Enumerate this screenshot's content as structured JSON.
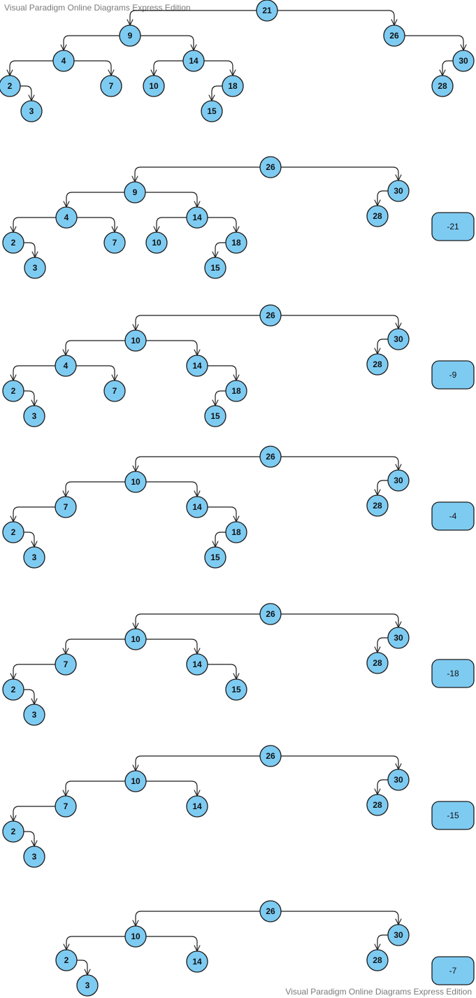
{
  "watermark": {
    "top": "Visual Paradigm Online Diagrams Express Edition",
    "bottom": "Visual Paradigm Online Diagrams Express Edition"
  },
  "colors": {
    "node_fill": "#7ecbf2",
    "node_stroke": "#1a1a1a",
    "edge": "#1a1a1a",
    "label_fill": "#7ecbf2"
  },
  "trees": [
    {
      "nodes": [
        {
          "id": "21",
          "label": "21"
        },
        {
          "id": "9",
          "label": "9"
        },
        {
          "id": "26",
          "label": "26"
        },
        {
          "id": "4",
          "label": "4"
        },
        {
          "id": "14",
          "label": "14"
        },
        {
          "id": "30",
          "label": "30"
        },
        {
          "id": "2",
          "label": "2"
        },
        {
          "id": "7",
          "label": "7"
        },
        {
          "id": "10",
          "label": "10"
        },
        {
          "id": "18",
          "label": "18"
        },
        {
          "id": "28",
          "label": "28"
        },
        {
          "id": "3",
          "label": "3"
        },
        {
          "id": "15",
          "label": "15"
        }
      ],
      "edges": [
        [
          "21",
          "9"
        ],
        [
          "21",
          "26"
        ],
        [
          "9",
          "4"
        ],
        [
          "9",
          "14"
        ],
        [
          "26",
          "30"
        ],
        [
          "4",
          "2"
        ],
        [
          "4",
          "7"
        ],
        [
          "14",
          "10"
        ],
        [
          "14",
          "18"
        ],
        [
          "30",
          "28"
        ],
        [
          "2",
          "3"
        ],
        [
          "18",
          "15"
        ]
      ],
      "operation": null
    },
    {
      "nodes": [
        {
          "id": "26",
          "label": "26"
        },
        {
          "id": "9",
          "label": "9"
        },
        {
          "id": "30",
          "label": "30"
        },
        {
          "id": "28",
          "label": "28"
        },
        {
          "id": "4",
          "label": "4"
        },
        {
          "id": "14",
          "label": "14"
        },
        {
          "id": "2",
          "label": "2"
        },
        {
          "id": "7",
          "label": "7"
        },
        {
          "id": "10",
          "label": "10"
        },
        {
          "id": "18",
          "label": "18"
        },
        {
          "id": "3",
          "label": "3"
        },
        {
          "id": "15",
          "label": "15"
        }
      ],
      "edges": [
        [
          "26",
          "9"
        ],
        [
          "26",
          "30"
        ],
        [
          "30",
          "28"
        ],
        [
          "9",
          "4"
        ],
        [
          "9",
          "14"
        ],
        [
          "4",
          "2"
        ],
        [
          "4",
          "7"
        ],
        [
          "14",
          "10"
        ],
        [
          "14",
          "18"
        ],
        [
          "2",
          "3"
        ],
        [
          "18",
          "15"
        ]
      ],
      "operation": "-21"
    },
    {
      "nodes": [
        {
          "id": "26",
          "label": "26"
        },
        {
          "id": "10",
          "label": "10"
        },
        {
          "id": "30",
          "label": "30"
        },
        {
          "id": "28",
          "label": "28"
        },
        {
          "id": "4",
          "label": "4"
        },
        {
          "id": "14",
          "label": "14"
        },
        {
          "id": "2",
          "label": "2"
        },
        {
          "id": "7",
          "label": "7"
        },
        {
          "id": "18",
          "label": "18"
        },
        {
          "id": "3",
          "label": "3"
        },
        {
          "id": "15",
          "label": "15"
        }
      ],
      "edges": [
        [
          "26",
          "10"
        ],
        [
          "26",
          "30"
        ],
        [
          "30",
          "28"
        ],
        [
          "10",
          "4"
        ],
        [
          "10",
          "14"
        ],
        [
          "4",
          "2"
        ],
        [
          "4",
          "7"
        ],
        [
          "14",
          "18"
        ],
        [
          "2",
          "3"
        ],
        [
          "18",
          "15"
        ]
      ],
      "operation": "-9"
    },
    {
      "nodes": [
        {
          "id": "26",
          "label": "26"
        },
        {
          "id": "10",
          "label": "10"
        },
        {
          "id": "30",
          "label": "30"
        },
        {
          "id": "28",
          "label": "28"
        },
        {
          "id": "7",
          "label": "7"
        },
        {
          "id": "14",
          "label": "14"
        },
        {
          "id": "2",
          "label": "2"
        },
        {
          "id": "18",
          "label": "18"
        },
        {
          "id": "3",
          "label": "3"
        },
        {
          "id": "15",
          "label": "15"
        }
      ],
      "edges": [
        [
          "26",
          "10"
        ],
        [
          "26",
          "30"
        ],
        [
          "30",
          "28"
        ],
        [
          "10",
          "7"
        ],
        [
          "10",
          "14"
        ],
        [
          "7",
          "2"
        ],
        [
          "14",
          "18"
        ],
        [
          "2",
          "3"
        ],
        [
          "18",
          "15"
        ]
      ],
      "operation": "-4"
    },
    {
      "nodes": [
        {
          "id": "26",
          "label": "26"
        },
        {
          "id": "10",
          "label": "10"
        },
        {
          "id": "30",
          "label": "30"
        },
        {
          "id": "28",
          "label": "28"
        },
        {
          "id": "7",
          "label": "7"
        },
        {
          "id": "14",
          "label": "14"
        },
        {
          "id": "2",
          "label": "2"
        },
        {
          "id": "15",
          "label": "15"
        },
        {
          "id": "3",
          "label": "3"
        }
      ],
      "edges": [
        [
          "26",
          "10"
        ],
        [
          "26",
          "30"
        ],
        [
          "30",
          "28"
        ],
        [
          "10",
          "7"
        ],
        [
          "10",
          "14"
        ],
        [
          "7",
          "2"
        ],
        [
          "14",
          "15"
        ],
        [
          "2",
          "3"
        ]
      ],
      "operation": "-18"
    },
    {
      "nodes": [
        {
          "id": "26",
          "label": "26"
        },
        {
          "id": "10",
          "label": "10"
        },
        {
          "id": "30",
          "label": "30"
        },
        {
          "id": "28",
          "label": "28"
        },
        {
          "id": "7",
          "label": "7"
        },
        {
          "id": "14",
          "label": "14"
        },
        {
          "id": "2",
          "label": "2"
        },
        {
          "id": "3",
          "label": "3"
        }
      ],
      "edges": [
        [
          "26",
          "10"
        ],
        [
          "26",
          "30"
        ],
        [
          "30",
          "28"
        ],
        [
          "10",
          "7"
        ],
        [
          "10",
          "14"
        ],
        [
          "7",
          "2"
        ],
        [
          "2",
          "3"
        ]
      ],
      "operation": "-15"
    },
    {
      "nodes": [
        {
          "id": "26",
          "label": "26"
        },
        {
          "id": "10",
          "label": "10"
        },
        {
          "id": "30",
          "label": "30"
        },
        {
          "id": "28",
          "label": "28"
        },
        {
          "id": "2",
          "label": "2"
        },
        {
          "id": "14",
          "label": "14"
        },
        {
          "id": "3",
          "label": "3"
        }
      ],
      "edges": [
        [
          "26",
          "10"
        ],
        [
          "26",
          "30"
        ],
        [
          "30",
          "28"
        ],
        [
          "10",
          "2"
        ],
        [
          "10",
          "14"
        ],
        [
          "2",
          "3"
        ]
      ],
      "operation": "-7"
    }
  ]
}
